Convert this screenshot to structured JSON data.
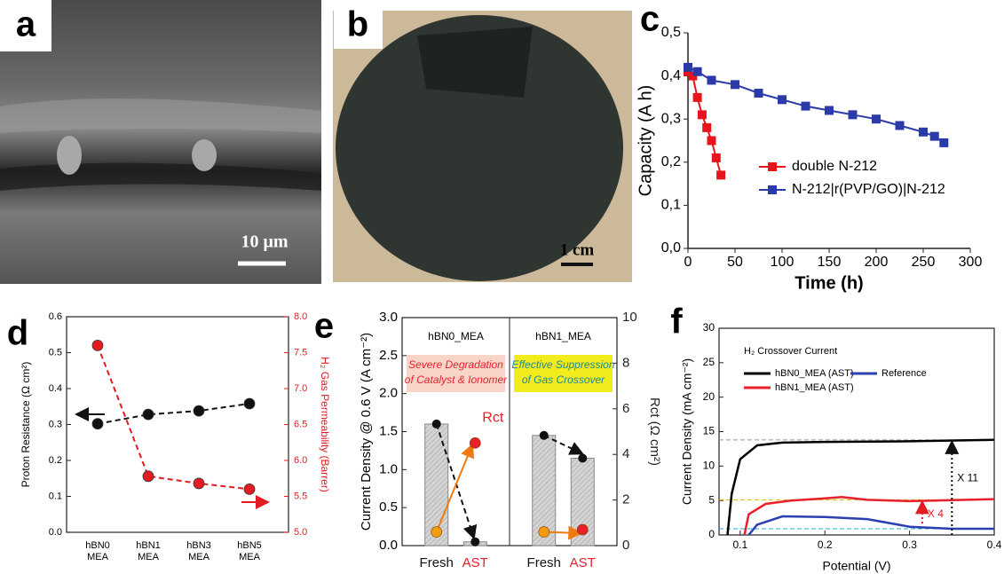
{
  "panel_labels": [
    "a",
    "b",
    "c",
    "d",
    "e",
    "f"
  ],
  "images": [
    {
      "scale_bar": "10 μm"
    },
    {
      "scale_bar": "1 cm"
    }
  ],
  "chart_data": [
    {
      "type": "line",
      "xlabel": "Time (h)",
      "ylabel": "Capacity (A h)",
      "xlim": [
        0,
        300
      ],
      "xticks": [
        0,
        50,
        100,
        150,
        200,
        250,
        300
      ],
      "ylim": [
        0,
        0.5
      ],
      "yticks": [
        {
          "value": 0,
          "label": "0,0"
        },
        {
          "value": 0.1,
          "label": "0,1"
        },
        {
          "value": 0.2,
          "label": "0,2"
        },
        {
          "value": 0.3,
          "label": "0,3"
        },
        {
          "value": 0.4,
          "label": "0,4"
        },
        {
          "value": 0.5,
          "label": "0,5"
        }
      ],
      "legend": "right",
      "series": [
        {
          "name": "double N-212",
          "color": "#e8141b",
          "x": [
            0,
            5,
            10,
            15,
            20,
            25,
            30,
            35
          ],
          "values": [
            0.41,
            0.4,
            0.35,
            0.31,
            0.28,
            0.25,
            0.21,
            0.17
          ]
        },
        {
          "name": "N-212|r(PVP/GO)|N-212",
          "color": "#2a3aa8",
          "x": [
            0,
            10,
            25,
            50,
            75,
            100,
            125,
            150,
            175,
            200,
            225,
            250,
            262,
            272
          ],
          "values": [
            0.42,
            0.41,
            0.39,
            0.38,
            0.36,
            0.345,
            0.33,
            0.32,
            0.31,
            0.3,
            0.285,
            0.27,
            0.26,
            0.245
          ]
        }
      ]
    },
    {
      "type": "line",
      "ylabel": "Proton Resistance (Ω cm²)",
      "y2label": "H₂ Gas Permeability (Barrer)",
      "y2color": "#e31b23",
      "categories": [
        [
          "hBN0",
          "MEA"
        ],
        [
          "hBN1",
          "MEA"
        ],
        [
          "hBN3",
          "MEA"
        ],
        [
          "hBN5",
          "MEA"
        ]
      ],
      "ylim": [
        0,
        0.6
      ],
      "yticks": [
        {
          "value": 0,
          "label": "0.0"
        },
        0.1,
        0.2,
        0.3,
        0.4,
        0.5,
        0.6
      ],
      "y2lim": [
        5,
        8
      ],
      "y2ticks": [
        {
          "value": 5,
          "label": "5.0"
        },
        5.5,
        {
          "value": 6,
          "label": "6.0"
        },
        6.5,
        {
          "value": 7,
          "label": "7.0"
        },
        7.5,
        {
          "value": 8,
          "label": "8.0"
        }
      ],
      "series": [
        {
          "color": "#111111",
          "values": [
            0.302,
            0.328,
            0.338,
            0.358
          ]
        },
        {
          "color": "#e31b23",
          "axis": "y2",
          "values": [
            7.6,
            5.78,
            5.68,
            5.6
          ]
        }
      ]
    },
    {
      "type": "bar",
      "ylabel": "Current Density @ 0.6 V (A cm⁻²)",
      "y2label": "Rct (Ω cm²)",
      "groups": [
        "hBN0_MEA",
        "hBN1_MEA"
      ],
      "annotations": [
        [
          "Severe Degradation",
          "of Catalyst & Ionomer"
        ],
        [
          "Effective Suppression",
          "of Gas Crossover"
        ]
      ],
      "rct_label": "Rct",
      "categories": [
        "Fresh",
        "AST",
        "Fresh",
        "AST"
      ],
      "category_colors": [
        "#111111",
        "#e8202a",
        "#111111",
        "#e8202a"
      ],
      "ylim": [
        0,
        3
      ],
      "yticks": [
        {
          "value": 0,
          "label": "0.0"
        },
        0.5,
        {
          "value": 1,
          "label": "1.0"
        },
        1.5,
        {
          "value": 2,
          "label": "2.0"
        },
        2.5,
        {
          "value": 3,
          "label": "3.0"
        }
      ],
      "y2lim": [
        0,
        10
      ],
      "y2ticks": [
        0,
        2,
        4,
        6,
        8,
        10
      ],
      "series": [
        {
          "color": "#111111",
          "values": [
            1.6,
            0.05,
            1.45,
            1.15
          ]
        },
        {
          "axis": "y2",
          "colors": [
            "#f39c12",
            "#e8202a",
            "#f39c12",
            "#e8202a"
          ],
          "values": [
            0.6,
            4.5,
            0.6,
            0.7
          ]
        }
      ]
    },
    {
      "type": "line",
      "xlabel": "Potential (V)",
      "ylabel": "Current Density (mA cm⁻²)",
      "legend_title": "H₂ Crossover Current",
      "xlim": [
        0.075,
        0.4
      ],
      "xticks": [
        0.1,
        0.2,
        0.3,
        0.4
      ],
      "ylim": [
        0,
        30
      ],
      "yticks": [
        0,
        5,
        10,
        15,
        20,
        25,
        30
      ],
      "reference_lines": [
        {
          "value": 13.8,
          "color": "#999999"
        },
        {
          "value": 5.1,
          "color": "#e0b400"
        },
        {
          "value": 0.9,
          "color": "#20a8d0"
        }
      ],
      "annotations": [
        "X 11",
        "X 4"
      ],
      "series": [
        {
          "name": "hBN0_MEA (AST)",
          "color": "#000000",
          "x": [
            0.085,
            0.09,
            0.1,
            0.12,
            0.15,
            0.2,
            0.3,
            0.4
          ],
          "values": [
            0,
            6,
            11,
            13,
            13.4,
            13.5,
            13.6,
            13.8
          ]
        },
        {
          "name": "hBN1_MEA (AST)",
          "color": "#e8202a",
          "x": [
            0.105,
            0.11,
            0.13,
            0.16,
            0.2,
            0.22,
            0.25,
            0.3,
            0.4
          ],
          "values": [
            0,
            3,
            4.5,
            5,
            5.3,
            5.5,
            5.1,
            4.9,
            5.2
          ]
        },
        {
          "name": "Reference",
          "color": "#2c3fb0",
          "x": [
            0.11,
            0.12,
            0.15,
            0.2,
            0.25,
            0.3,
            0.35,
            0.4
          ],
          "values": [
            0,
            1.5,
            2.7,
            2.6,
            2.3,
            1.2,
            0.9,
            0.9
          ]
        }
      ]
    }
  ]
}
